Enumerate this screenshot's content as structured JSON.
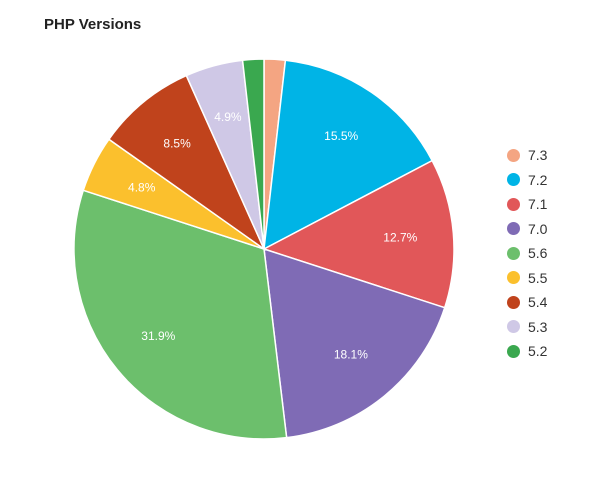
{
  "chart_data": {
    "type": "pie",
    "title": "PHP Versions",
    "legend_position": "right",
    "slices": [
      {
        "label": "7.3",
        "value": 1.8,
        "color": "#f4a582",
        "value_label": ""
      },
      {
        "label": "7.2",
        "value": 15.5,
        "color": "#00b4e6",
        "value_label": "15.5%"
      },
      {
        "label": "7.1",
        "value": 12.7,
        "color": "#e15759",
        "value_label": "12.7%"
      },
      {
        "label": "7.0",
        "value": 18.1,
        "color": "#7f6bb5",
        "value_label": "18.1%"
      },
      {
        "label": "5.6",
        "value": 31.9,
        "color": "#6cbf6c",
        "value_label": "31.9%"
      },
      {
        "label": "5.5",
        "value": 4.8,
        "color": "#fbc02d",
        "value_label": "4.8%"
      },
      {
        "label": "5.4",
        "value": 8.5,
        "color": "#c0431c",
        "value_label": "8.5%"
      },
      {
        "label": "5.3",
        "value": 4.9,
        "color": "#cfc8e6",
        "value_label": "4.9%"
      },
      {
        "label": "5.2",
        "value": 1.8,
        "color": "#3aa84f",
        "value_label": ""
      }
    ]
  }
}
